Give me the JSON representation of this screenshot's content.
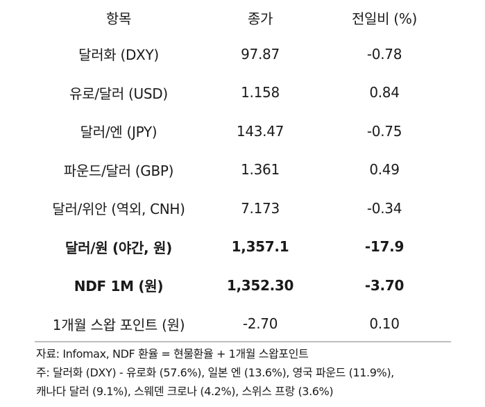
{
  "table": {
    "headers": [
      "항목",
      "종가",
      "전일비 (%)"
    ],
    "rows": [
      {
        "item": "달러화 (DXY)",
        "close": "97.87",
        "change": "-0.78",
        "bold": false
      },
      {
        "item": "유로/달러 (USD)",
        "close": "1.158",
        "change": "0.84",
        "bold": false
      },
      {
        "item": "달러/엔 (JPY)",
        "close": "143.47",
        "change": "-0.75",
        "bold": false
      },
      {
        "item": "파운드/달러 (GBP)",
        "close": "1.361",
        "change": "0.49",
        "bold": false
      },
      {
        "item": "달러/위안 (역외, CNH)",
        "close": "7.173",
        "change": "-0.34",
        "bold": false
      },
      {
        "item": "달러/원 (야간, 원)",
        "close": "1,357.1",
        "change": "-17.9",
        "bold": true
      },
      {
        "item": "NDF 1M (원)",
        "close": "1,352.30",
        "change": "-3.70",
        "bold": true
      },
      {
        "item": "1개월 스왑 포인트 (원)",
        "close": "-2.70",
        "change": "0.10",
        "bold": false
      }
    ]
  },
  "notes": {
    "source": "자료: Infomax, NDF 환율 = 현물환율 + 1개월 스왑포인트",
    "note_line1": "주: 달러화 (DXY) - 유로화 (57.6%), 일본 엔 (13.6%), 영국 파운드 (11.9%),",
    "note_line2": "캐나다 달러 (9.1%), 스웨덴 크로나 (4.2%), 스위스 프랑 (3.6%)"
  }
}
